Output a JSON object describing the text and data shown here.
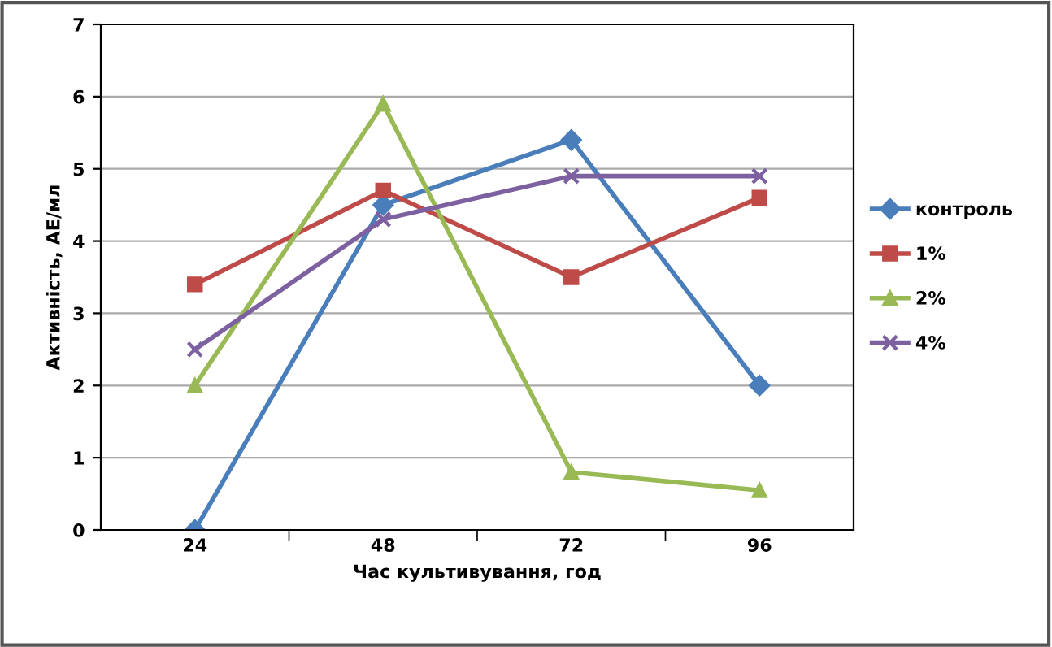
{
  "chart_data": {
    "type": "line",
    "xlabel": "Час культивування, год",
    "ylabel": "Активність, АЕ/мл",
    "categories": [
      "24",
      "48",
      "72",
      "96"
    ],
    "series": [
      {
        "name": "контроль",
        "color": "#4a7ebb",
        "marker": "diamond",
        "values": [
          0,
          4.5,
          5.4,
          2
        ]
      },
      {
        "name": "1%",
        "color": "#be4b48",
        "marker": "square",
        "values": [
          3.4,
          4.7,
          3.5,
          4.6
        ]
      },
      {
        "name": "2%",
        "color": "#98b954",
        "marker": "triangle",
        "values": [
          2,
          5.9,
          0.8,
          0.55
        ]
      },
      {
        "name": "4%",
        "color": "#7d60a0",
        "marker": "cross",
        "values": [
          2.5,
          4.3,
          4.9,
          4.9
        ]
      }
    ],
    "ylim": [
      0,
      7
    ],
    "yticks": [
      0,
      1,
      2,
      3,
      4,
      5,
      6,
      7
    ],
    "grid": "y",
    "legend": "right"
  }
}
